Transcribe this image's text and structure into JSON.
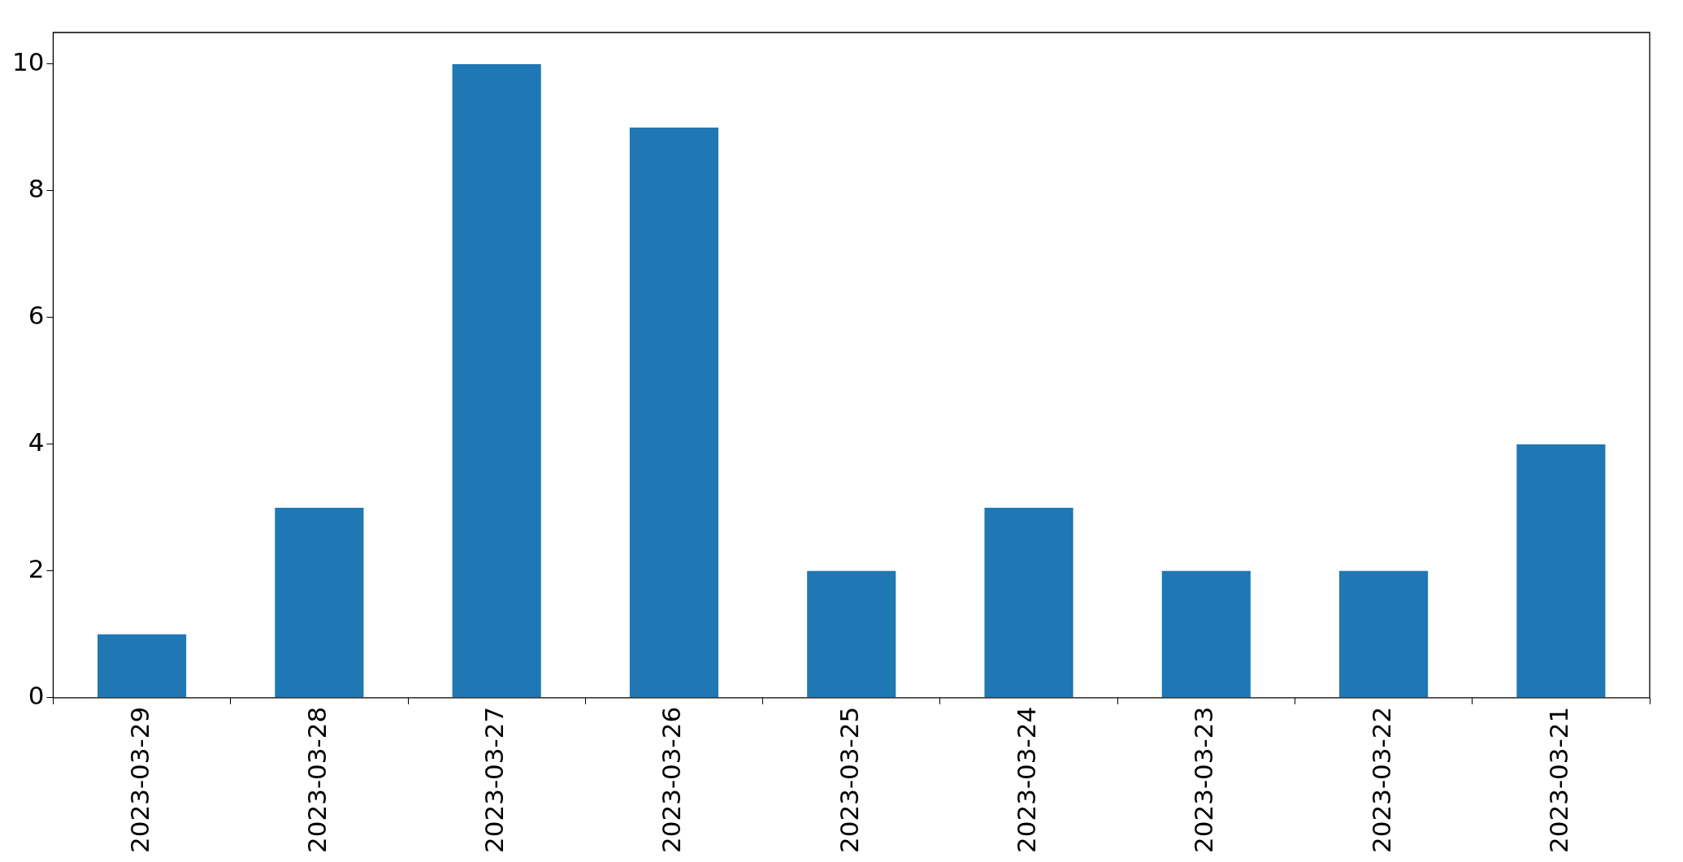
{
  "chart_data": {
    "type": "bar",
    "categories": [
      "2023-03-29",
      "2023-03-28",
      "2023-03-27",
      "2023-03-26",
      "2023-03-25",
      "2023-03-24",
      "2023-03-23",
      "2023-03-22",
      "2023-03-21"
    ],
    "values": [
      1,
      3,
      10,
      9,
      2,
      3,
      2,
      2,
      4
    ],
    "color": "#1f77b4",
    "ylim": [
      0,
      10.5
    ],
    "yticks": [
      0,
      2,
      4,
      6,
      8,
      10
    ]
  }
}
